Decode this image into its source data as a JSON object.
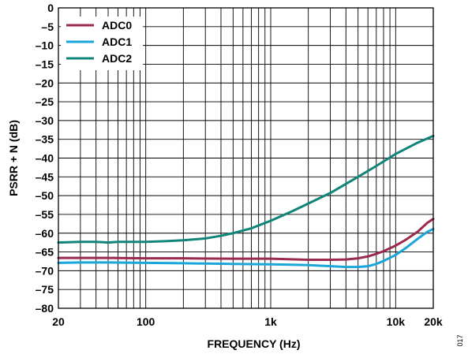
{
  "figure_id": "017",
  "chart_data": {
    "type": "line",
    "title": "",
    "xlabel": "FREQUENCY (Hz)",
    "ylabel": "PSRR + N (dB)",
    "x_scale": "log",
    "xlim": [
      20,
      20000
    ],
    "ylim": [
      -80,
      0
    ],
    "x_ticks": [
      {
        "value": 20,
        "label": "20"
      },
      {
        "value": 100,
        "label": "100"
      },
      {
        "value": 1000,
        "label": "1k"
      },
      {
        "value": 10000,
        "label": "10k"
      },
      {
        "value": 20000,
        "label": "20k"
      }
    ],
    "y_ticks": [
      {
        "value": 0,
        "label": "0"
      },
      {
        "value": -5,
        "label": "–5"
      },
      {
        "value": -10,
        "label": "–10"
      },
      {
        "value": -15,
        "label": "–15"
      },
      {
        "value": -20,
        "label": "–20"
      },
      {
        "value": -25,
        "label": "–25"
      },
      {
        "value": -30,
        "label": "–30"
      },
      {
        "value": -35,
        "label": "–35"
      },
      {
        "value": -40,
        "label": "–40"
      },
      {
        "value": -45,
        "label": "–45"
      },
      {
        "value": -50,
        "label": "–50"
      },
      {
        "value": -55,
        "label": "–55"
      },
      {
        "value": -60,
        "label": "–60"
      },
      {
        "value": -65,
        "label": "–65"
      },
      {
        "value": -70,
        "label": "–70"
      },
      {
        "value": -75,
        "label": "–75"
      },
      {
        "value": -80,
        "label": "–80"
      }
    ],
    "grid": true,
    "legend_position": "top-left",
    "series": [
      {
        "name": "ADC0",
        "color": "#9b2a4f",
        "points": [
          [
            20,
            -66.6
          ],
          [
            30,
            -66.6
          ],
          [
            50,
            -66.6
          ],
          [
            100,
            -66.7
          ],
          [
            200,
            -66.7
          ],
          [
            500,
            -66.8
          ],
          [
            1000,
            -66.8
          ],
          [
            2000,
            -67.1
          ],
          [
            3000,
            -67.1
          ],
          [
            4000,
            -67.0
          ],
          [
            5000,
            -66.7
          ],
          [
            6000,
            -66.2
          ],
          [
            7000,
            -65.5
          ],
          [
            8000,
            -64.8
          ],
          [
            10000,
            -63.3
          ],
          [
            12000,
            -61.8
          ],
          [
            15000,
            -59.6
          ],
          [
            18000,
            -57.2
          ],
          [
            20000,
            -56.2
          ]
        ]
      },
      {
        "name": "ADC1",
        "color": "#1aa6d8",
        "points": [
          [
            20,
            -67.9
          ],
          [
            30,
            -67.8
          ],
          [
            50,
            -67.8
          ],
          [
            100,
            -67.9
          ],
          [
            200,
            -68.0
          ],
          [
            500,
            -68.2
          ],
          [
            1000,
            -68.3
          ],
          [
            2000,
            -68.5
          ],
          [
            3000,
            -68.8
          ],
          [
            4000,
            -69.0
          ],
          [
            5000,
            -69.0
          ],
          [
            6000,
            -68.8
          ],
          [
            7000,
            -68.2
          ],
          [
            8000,
            -67.4
          ],
          [
            10000,
            -65.8
          ],
          [
            12000,
            -64.0
          ],
          [
            15000,
            -61.5
          ],
          [
            18000,
            -59.6
          ],
          [
            20000,
            -58.9
          ]
        ]
      },
      {
        "name": "ADC2",
        "color": "#12857a",
        "points": [
          [
            20,
            -62.5
          ],
          [
            30,
            -62.3
          ],
          [
            40,
            -62.3
          ],
          [
            50,
            -62.5
          ],
          [
            60,
            -62.3
          ],
          [
            80,
            -62.3
          ],
          [
            100,
            -62.3
          ],
          [
            150,
            -62.1
          ],
          [
            200,
            -61.9
          ],
          [
            300,
            -61.4
          ],
          [
            400,
            -60.7
          ],
          [
            500,
            -60.0
          ],
          [
            700,
            -58.7
          ],
          [
            1000,
            -56.7
          ],
          [
            1500,
            -54.1
          ],
          [
            2000,
            -52.1
          ],
          [
            3000,
            -49.3
          ],
          [
            5000,
            -45.0
          ],
          [
            7000,
            -42.1
          ],
          [
            10000,
            -38.9
          ],
          [
            15000,
            -35.9
          ],
          [
            20000,
            -34.1
          ]
        ]
      }
    ]
  }
}
